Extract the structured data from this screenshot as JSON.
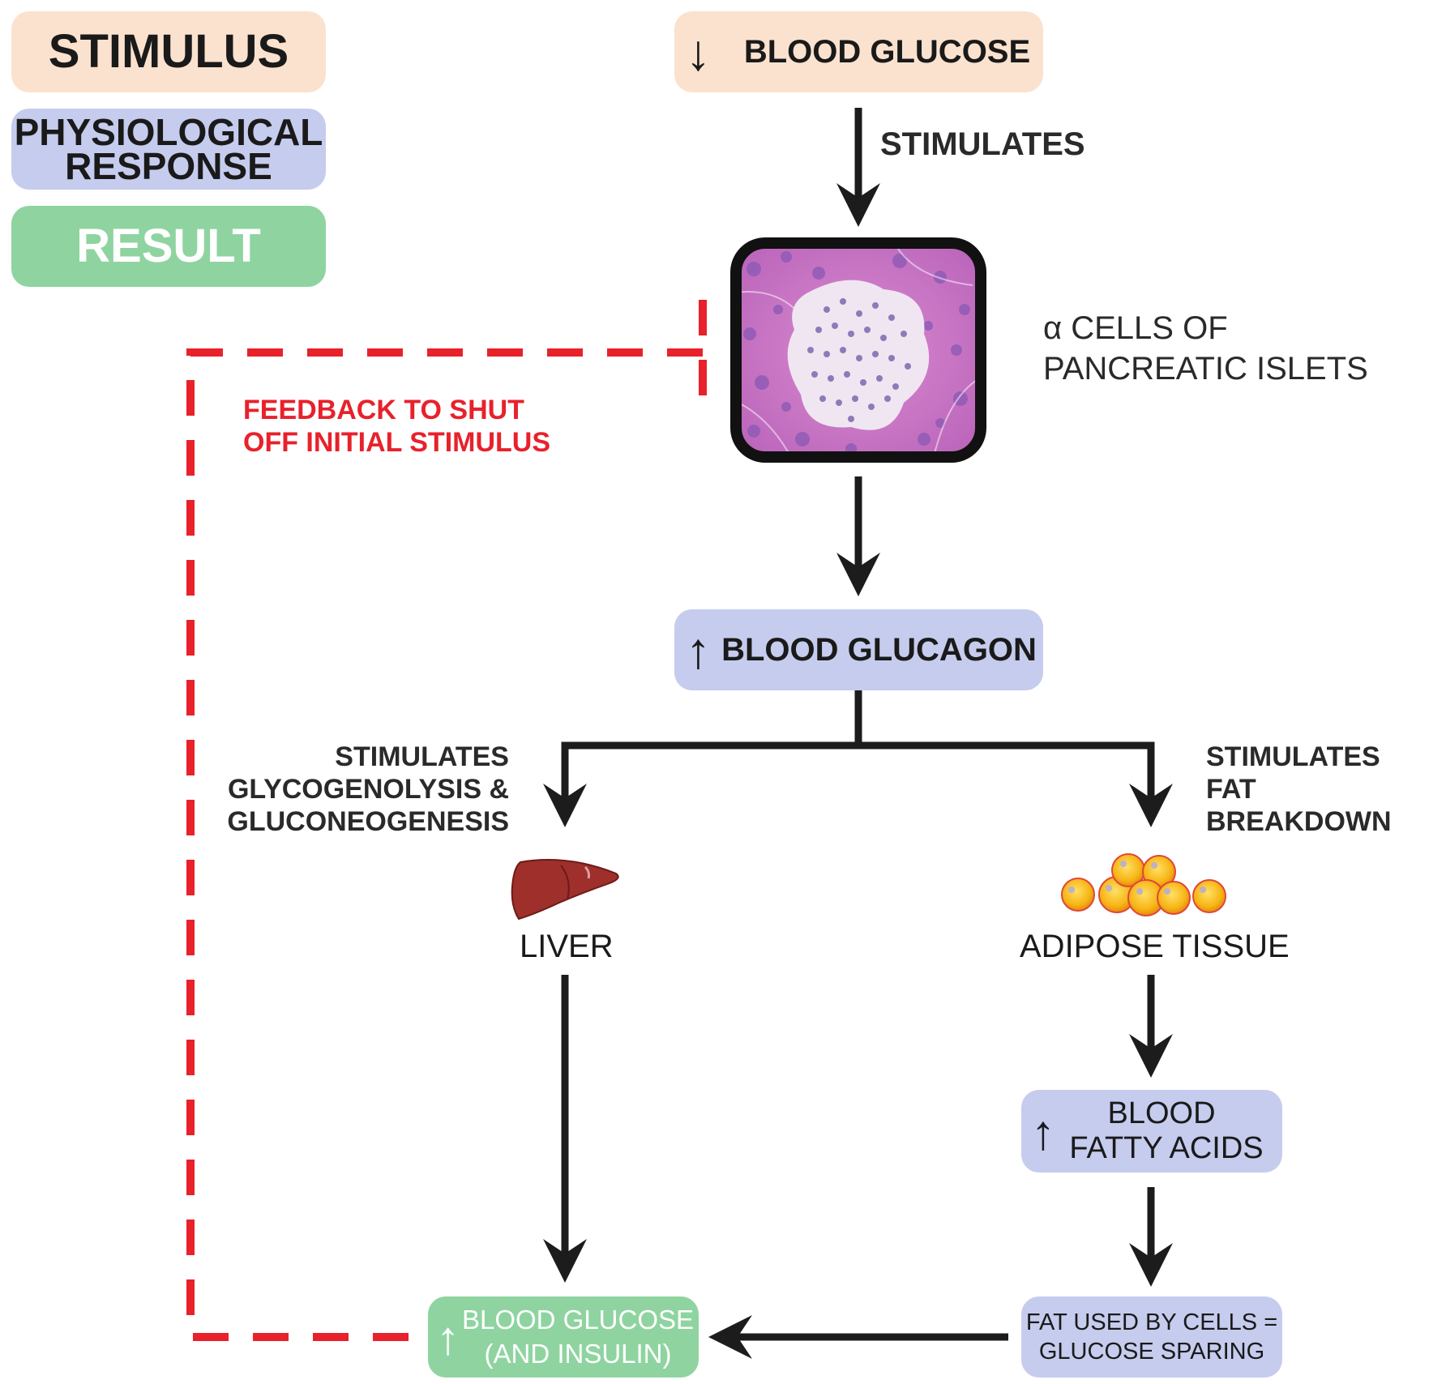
{
  "legend": {
    "stimulus": "STIMULUS",
    "response_line1": "PHYSIOLOGICAL",
    "response_line2": "RESPONSE",
    "result": "RESULT"
  },
  "colors": {
    "stimulus": "#fbe2cf",
    "response": "#c6ccee",
    "result": "#8fd4a0",
    "feedback": "#e8212b",
    "arrow": "#1c1c1c"
  },
  "nodes": {
    "blood_glucose_low": {
      "arrow": "↓",
      "label": "BLOOD GLUCOSE"
    },
    "stimulates_top": "STIMULATES",
    "alpha_cells": {
      "line1": "α CELLS OF",
      "line2": "PANCREATIC ISLETS"
    },
    "blood_glucagon": {
      "arrow": "↑",
      "label": "BLOOD GLUCAGON"
    },
    "left_branch": {
      "line1": "STIMULATES",
      "line2": "GLYCOGENOLYSIS &",
      "line3": "GLUCONEOGENESIS"
    },
    "right_branch": {
      "line1": "STIMULATES",
      "line2": "FAT BREAKDOWN"
    },
    "liver": "LIVER",
    "adipose": "ADIPOSE TISSUE",
    "fatty_acids": {
      "arrow": "↑",
      "line1": "BLOOD",
      "line2": "FATTY ACIDS"
    },
    "fat_used": {
      "line1": "FAT USED BY CELLS =",
      "line2": "GLUCOSE SPARING"
    },
    "blood_glucose_high": {
      "arrow": "↑",
      "line1": "BLOOD GLUCOSE",
      "line2": "(AND INSULIN)"
    }
  },
  "feedback": {
    "line1": "FEEDBACK TO SHUT",
    "line2": "OFF INITIAL STIMULUS"
  },
  "icons": [
    "pancreatic-islet-micrograph",
    "liver-icon",
    "adipose-cells-icon"
  ]
}
